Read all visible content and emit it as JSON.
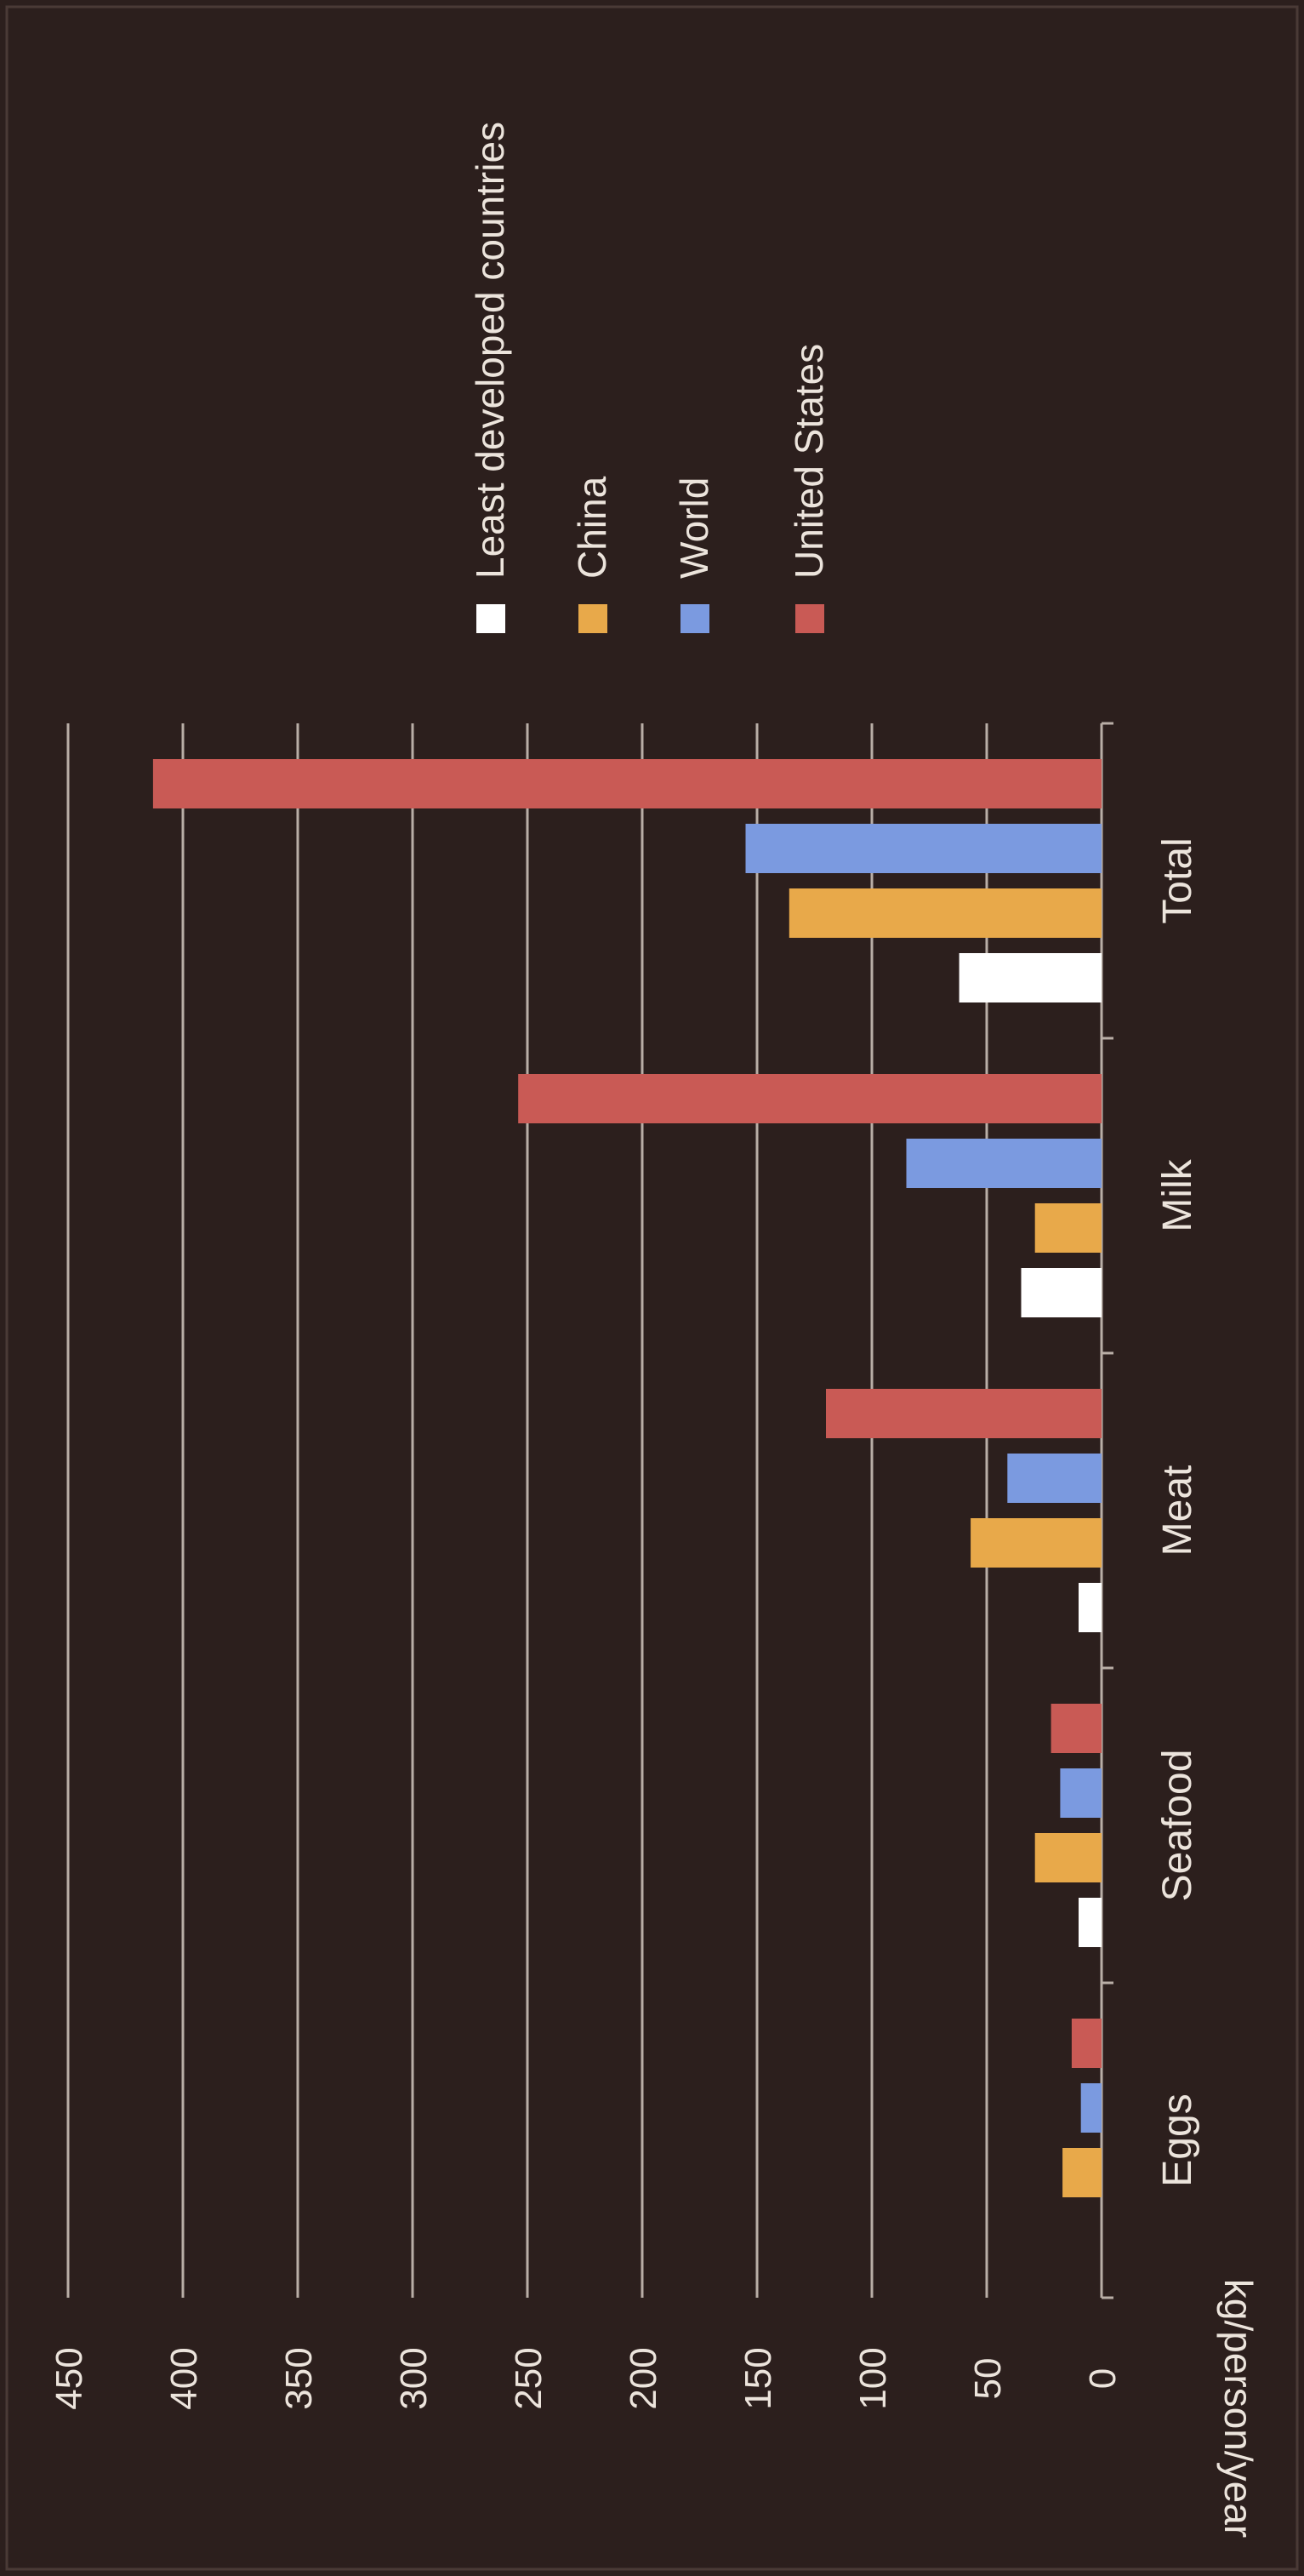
{
  "chart_data": {
    "type": "bar",
    "orientation": "vertical",
    "rotated_image": "90deg-clockwise",
    "categories": [
      "Eggs",
      "Seafood",
      "Meat",
      "Milk",
      "Total"
    ],
    "series": [
      {
        "name": "Least developed countries",
        "color": "#ffffff",
        "values": [
          null,
          10,
          10,
          35,
          62
        ]
      },
      {
        "name": "China",
        "color": "#e8a94a",
        "values": [
          17,
          29,
          57,
          29,
          136
        ]
      },
      {
        "name": "World",
        "color": "#7b9ae0",
        "values": [
          9,
          18,
          41,
          85,
          155
        ]
      },
      {
        "name": "United States",
        "color": "#c95a55",
        "values": [
          13,
          22,
          120,
          254,
          413
        ]
      }
    ],
    "ylabel": "kg/person/year",
    "xlabel": "",
    "ylim": [
      0,
      450
    ],
    "yticks": [
      "0",
      "50",
      "100",
      "150",
      "200",
      "250",
      "300",
      "350",
      "400",
      "450"
    ],
    "grid": true,
    "legend_position": "top-right"
  },
  "colors": {
    "background": "#2c1f1d",
    "gridline": "#b9aea6",
    "text": "#ece4dc"
  }
}
